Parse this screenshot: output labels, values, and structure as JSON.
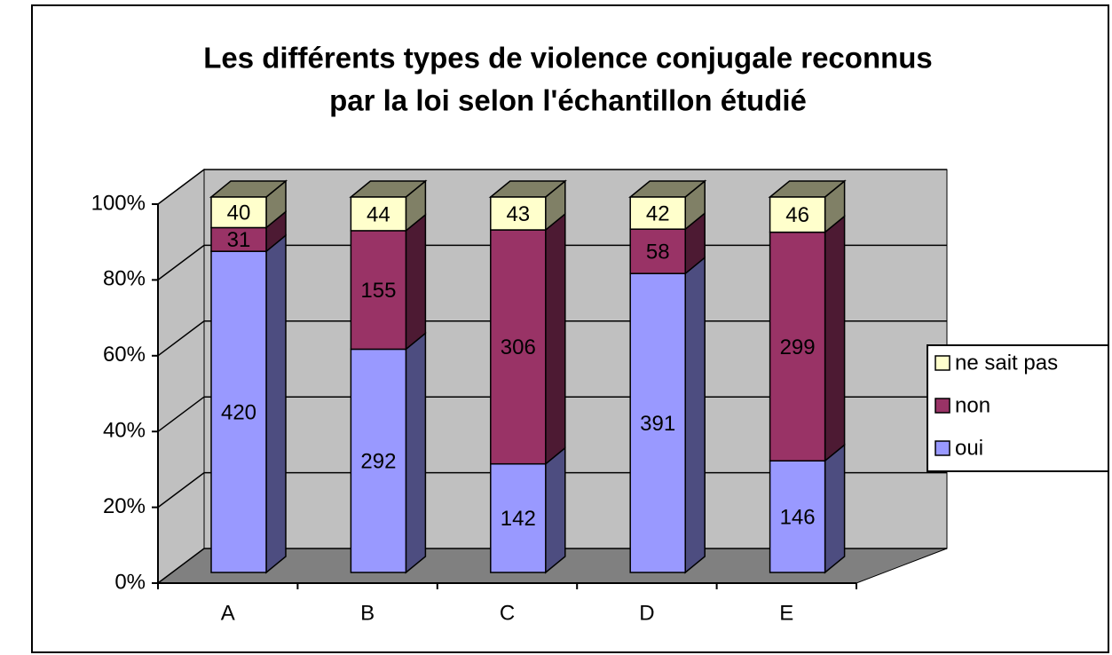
{
  "chart_data": {
    "type": "bar3d",
    "stacking": "percent",
    "title": [
      "Les différents types de violence conjugale reconnus",
      "par la loi selon l'échantillon étudié"
    ],
    "categories": [
      "A",
      "B",
      "C",
      "D",
      "E"
    ],
    "series": [
      {
        "name": "oui",
        "color": "#9999ff",
        "side_color": "#4d4d80",
        "values": [
          420,
          292,
          142,
          391,
          146
        ]
      },
      {
        "name": "non",
        "color": "#993366",
        "side_color": "#4d1a33",
        "values": [
          31,
          155,
          306,
          58,
          299
        ]
      },
      {
        "name": "ne sait pas",
        "color": "#ffffcc",
        "side_color": "#808066",
        "values": [
          40,
          44,
          43,
          42,
          46
        ]
      }
    ],
    "ylim": [
      0,
      100
    ],
    "yticks": [
      {
        "value": 0,
        "label": "0%"
      },
      {
        "value": 20,
        "label": "20%"
      },
      {
        "value": 40,
        "label": "40%"
      },
      {
        "value": 60,
        "label": "60%"
      },
      {
        "value": 80,
        "label": "80%"
      },
      {
        "value": 100,
        "label": "100%"
      }
    ],
    "grid": true,
    "legend": "right",
    "wall_color": "#c0c0c0",
    "floor_color": "#808080"
  }
}
